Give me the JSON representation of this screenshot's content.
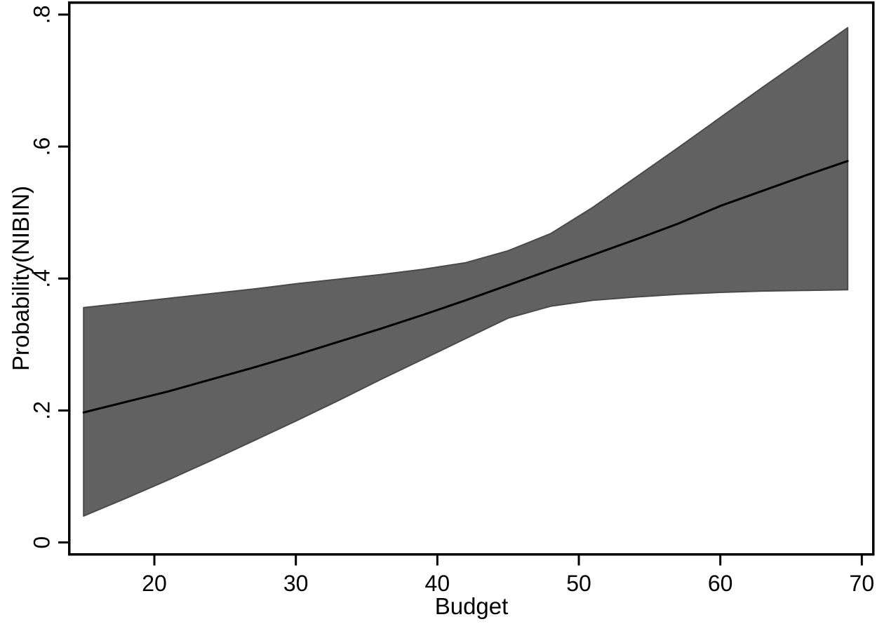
{
  "figure": {
    "kind": "stata-margins-plot",
    "background": "#ffffff"
  },
  "chart_data": {
    "type": "line",
    "title": "",
    "xlabel": "Budget",
    "ylabel": "Probability(NIBIN)",
    "legend_position": "none",
    "grid": false,
    "x_ticks": [
      20,
      30,
      40,
      50,
      60,
      70
    ],
    "x_tick_labels": [
      "20",
      "30",
      "40",
      "50",
      "60",
      "70"
    ],
    "y_ticks": [
      0,
      0.2,
      0.4,
      0.6,
      0.8
    ],
    "y_tick_labels": [
      "0",
      ".2",
      ".4",
      ".6",
      ".8"
    ],
    "xlim": [
      13.9,
      70.9
    ],
    "ylim": [
      -0.02,
      0.82
    ],
    "x": [
      15,
      18,
      21,
      24,
      27,
      30,
      33,
      36,
      39,
      42,
      45,
      48,
      51,
      54,
      57,
      60,
      63,
      66,
      69
    ],
    "series": [
      {
        "name": "predicted-probability",
        "values": [
          0.197,
          0.213,
          0.229,
          0.247,
          0.265,
          0.284,
          0.304,
          0.324,
          0.345,
          0.367,
          0.39,
          0.413,
          0.436,
          0.459,
          0.483,
          0.51,
          0.533,
          0.556,
          0.578
        ]
      }
    ],
    "ci_band": {
      "name": "95%-confidence-interval",
      "upper": [
        0.356,
        0.363,
        0.37,
        0.377,
        0.384,
        0.392,
        0.399,
        0.406,
        0.414,
        0.424,
        0.442,
        0.468,
        0.508,
        0.553,
        0.598,
        0.644,
        0.69,
        0.735,
        0.78
      ],
      "lower": [
        0.04,
        0.067,
        0.095,
        0.124,
        0.154,
        0.184,
        0.215,
        0.247,
        0.278,
        0.309,
        0.34,
        0.358,
        0.367,
        0.372,
        0.376,
        0.379,
        0.381,
        0.382,
        0.383
      ]
    },
    "colors": {
      "band": "#616161",
      "band_edge": "#4a4a4a",
      "line": "#000000",
      "axis": "#000000",
      "background": "#ffffff"
    }
  }
}
